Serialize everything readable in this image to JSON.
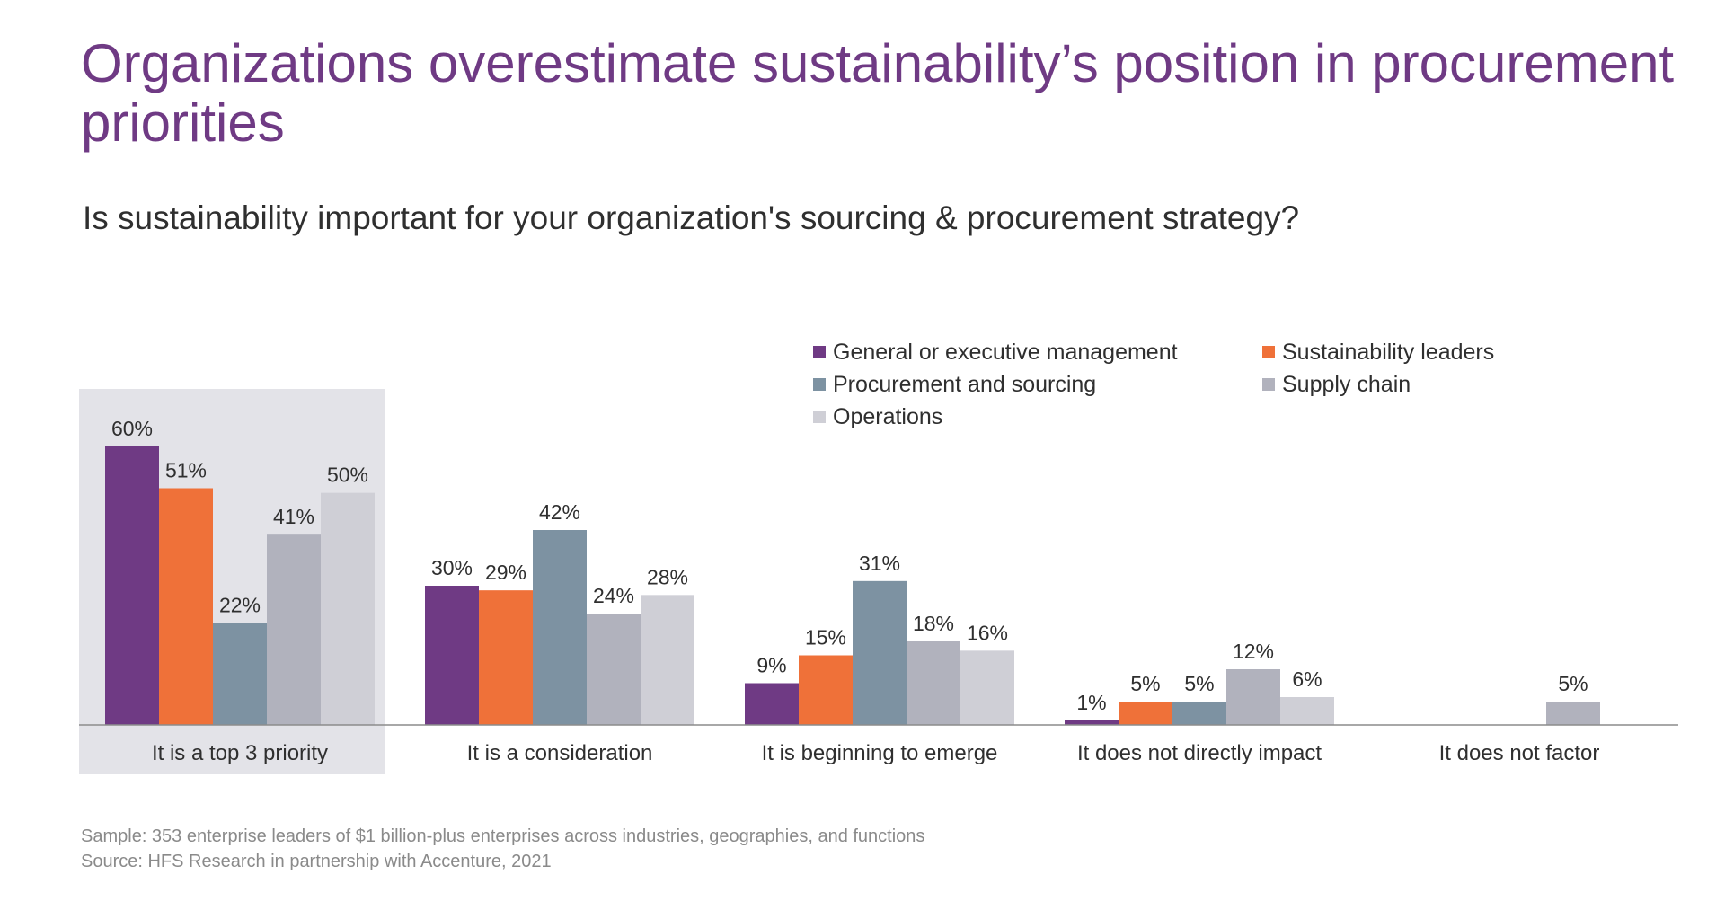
{
  "title": "Organizations overestimate sustainability’s position in procurement priorities",
  "subtitle": "Is sustainability important for your organization's sourcing & procurement strategy?",
  "footnotes": {
    "sample": "Sample: 353 enterprise leaders of $1 billion-plus enterprises across industries, geographies, and functions",
    "source": "Source: HFS Research in partnership with Accenture, 2021"
  },
  "colors": {
    "title": "#6f3a84",
    "highlight_bg": "#e3e3e8",
    "axis": "#8c8c8c"
  },
  "chart_data": {
    "type": "bar",
    "title": "",
    "xlabel": "",
    "ylabel": "",
    "ylim": [
      0,
      65
    ],
    "grid": false,
    "legend_placement": "top-right",
    "highlighted_category": "It is a top 3 priority",
    "categories": [
      "It is a top 3 priority",
      "It is a consideration",
      "It is beginning to emerge",
      "It does not directly impact",
      "It does not factor"
    ],
    "series": [
      {
        "name": "General or executive management",
        "color": "#6f3a84",
        "values": [
          60,
          30,
          9,
          1,
          null
        ],
        "labels": [
          "60%",
          "30%",
          "9%",
          "1%",
          ""
        ]
      },
      {
        "name": "Sustainability leaders",
        "color": "#ef7139",
        "values": [
          51,
          29,
          15,
          5,
          null
        ],
        "labels": [
          "51%",
          "29%",
          "15%",
          "5%",
          ""
        ]
      },
      {
        "name": "Procurement and sourcing",
        "color": "#7d92a2",
        "values": [
          22,
          42,
          31,
          5,
          null
        ],
        "labels": [
          "22%",
          "42%",
          "31%",
          "5%",
          ""
        ]
      },
      {
        "name": "Supply chain",
        "color": "#b1b2bd",
        "values": [
          41,
          24,
          18,
          12,
          5
        ],
        "labels": [
          "41%",
          "24%",
          "18%",
          "12%",
          "5%"
        ]
      },
      {
        "name": "Operations",
        "color": "#cfcfd6",
        "values": [
          50,
          28,
          16,
          6,
          null
        ],
        "labels": [
          "50%",
          "28%",
          "16%",
          "6%",
          ""
        ]
      }
    ]
  }
}
